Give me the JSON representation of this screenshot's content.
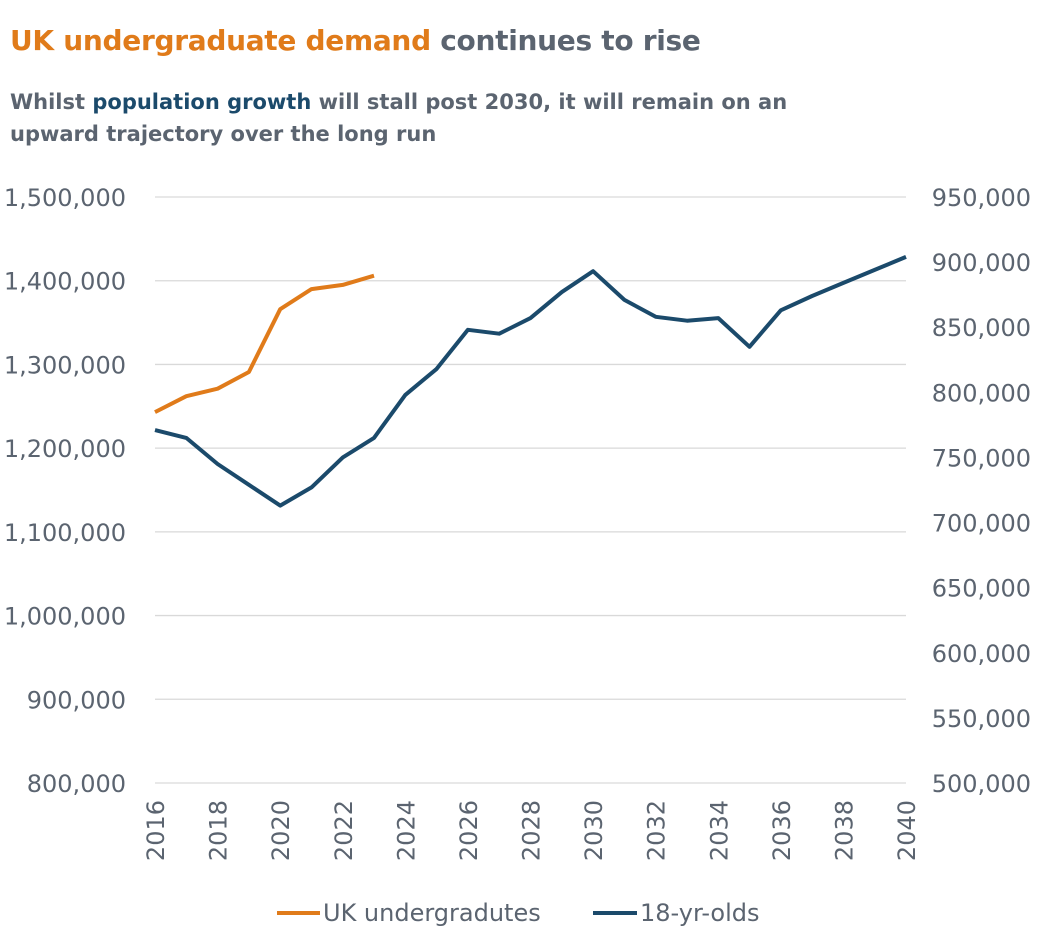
{
  "header": {
    "title_highlight": "UK undergraduate demand",
    "title_rest": " continues to rise",
    "subtitle_pre": "Whilst ",
    "subtitle_highlight": "population growth",
    "subtitle_post": " will stall post 2030, it will remain on an upward trajectory over the long run"
  },
  "colors": {
    "undergrad": "#e07b1a",
    "pop18": "#1b4a6b",
    "grid": "#d9d9d9",
    "text": "#5b6470"
  },
  "chart_data": {
    "type": "line",
    "grid": true,
    "legend_position": "bottom",
    "x_ticks": [
      "2016",
      "2018",
      "2020",
      "2022",
      "2024",
      "2026",
      "2028",
      "2030",
      "2032",
      "2034",
      "2036",
      "2038",
      "2040"
    ],
    "xlim": [
      2016,
      2040
    ],
    "y_left": {
      "ylim": [
        800000,
        1500000
      ],
      "ticks": [
        "800,000",
        "900,000",
        "1,000,000",
        "1,100,000",
        "1,200,000",
        "1,300,000",
        "1,400,000",
        "1,500,000"
      ]
    },
    "y_right": {
      "ylim": [
        500000,
        950000
      ],
      "ticks": [
        "500,000",
        "550,000",
        "600,000",
        "650,000",
        "700,000",
        "750,000",
        "800,000",
        "850,000",
        "900,000",
        "950,000"
      ]
    },
    "series": [
      {
        "name": "UK undergradutes",
        "axis": "left",
        "x": [
          2016,
          2017,
          2018,
          2019,
          2020,
          2021,
          2022,
          2023
        ],
        "y": [
          1243000,
          1262000,
          1271000,
          1291000,
          1366000,
          1390000,
          1395000,
          1406000
        ]
      },
      {
        "name": "18-yr-olds",
        "axis": "right",
        "x": [
          2016,
          2017,
          2018,
          2019,
          2020,
          2021,
          2022,
          2023,
          2024,
          2025,
          2026,
          2027,
          2028,
          2029,
          2030,
          2031,
          2032,
          2033,
          2034,
          2035,
          2036,
          2037,
          2038,
          2039,
          2040
        ],
        "y": [
          771000,
          765000,
          745000,
          729000,
          713000,
          727000,
          750000,
          765000,
          798000,
          818000,
          848000,
          845000,
          857000,
          877000,
          893000,
          871000,
          858000,
          855000,
          857000,
          835000,
          863000,
          874000,
          884000,
          894000,
          904000
        ]
      }
    ]
  }
}
